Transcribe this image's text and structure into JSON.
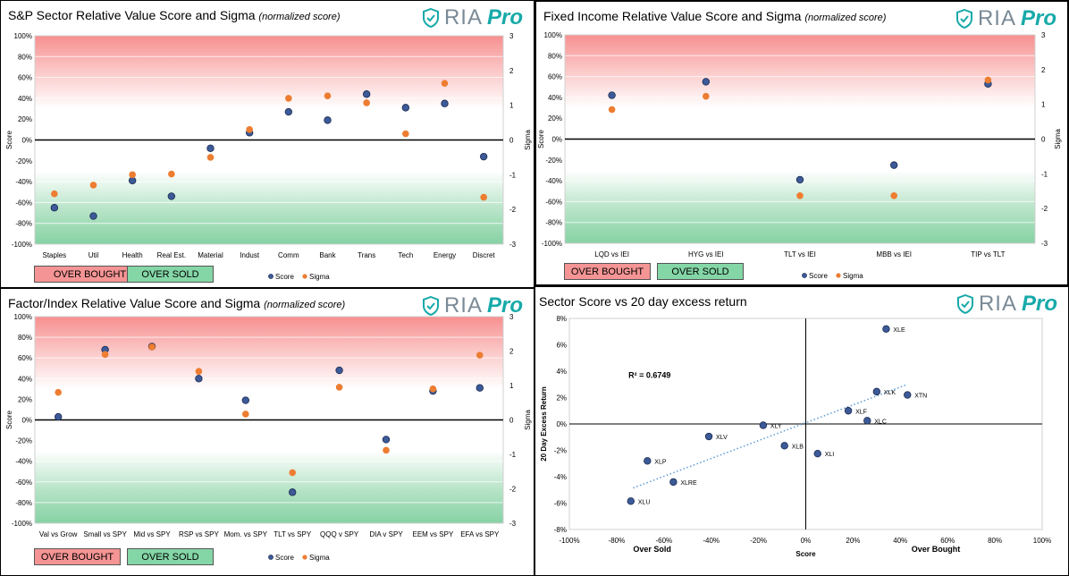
{
  "brand": {
    "ria": "RIA",
    "pro": "Pro",
    "teal": "#18a9a9",
    "gray": "#7a8a96"
  },
  "colors": {
    "score": "#3d5a98",
    "sigma": "#ed7d31",
    "overbought_bg": "#f59494",
    "oversold_bg": "#84d6a6"
  },
  "panels": {
    "sp": {
      "title": "S&P Sector Relative Value Score and Sigma",
      "subtitle": "(normalized score)",
      "overbought_label": "OVER BOUGHT",
      "oversold_label": "OVER SOLD"
    },
    "fi": {
      "title": "Fixed Income Relative Value Score and Sigma",
      "subtitle": "(normalized score)",
      "overbought_label": "OVER BOUGHT",
      "oversold_label": "OVER SOLD"
    },
    "fx": {
      "title": "Factor/Index Relative Value Score and Sigma",
      "subtitle": "(normalized score)",
      "overbought_label": "OVER BOUGHT",
      "oversold_label": "OVER SOLD"
    },
    "sc": {
      "title": "Sector Score vs 20 day excess return"
    }
  },
  "chart_data": [
    {
      "id": "sp",
      "type": "scatter",
      "title": "S&P Sector Relative Value Score and Sigma",
      "categories": [
        "Staples",
        "Util",
        "Health",
        "Real Est.",
        "Material",
        "Indust",
        "Comm",
        "Bank",
        "Trans",
        "Tech",
        "Energy",
        "Discret"
      ],
      "series": [
        {
          "name": "Score",
          "values": [
            -65,
            -73,
            -39,
            -54,
            -8,
            7,
            27,
            19,
            44,
            31,
            35,
            -16
          ]
        },
        {
          "name": "Sigma",
          "values": [
            -1.55,
            -1.3,
            -1.0,
            -0.98,
            -0.5,
            0.3,
            1.2,
            1.27,
            1.07,
            0.18,
            1.63,
            -1.65
          ]
        }
      ],
      "ylabel": "Score",
      "y2label": "Sigma",
      "ylim": [
        -100,
        100
      ],
      "y2lim": [
        -3,
        3
      ],
      "yticks": [
        "100%",
        "80%",
        "60%",
        "40%",
        "20%",
        "0%",
        "-20%",
        "-40%",
        "-60%",
        "-80%",
        "-100%"
      ],
      "y2ticks": [
        "3",
        "2",
        "1",
        "0",
        "-1",
        "-2",
        "-3"
      ],
      "legend": [
        "Score",
        "Sigma"
      ]
    },
    {
      "id": "fi",
      "type": "scatter",
      "title": "Fixed Income Relative Value Score and Sigma",
      "categories": [
        "LQD vs IEI",
        "HYG vs IEI",
        "TLT vs IEI",
        "MBB vs IEI",
        "TIP vs TLT"
      ],
      "series": [
        {
          "name": "Score",
          "values": [
            42,
            55,
            -39,
            -25,
            53
          ]
        },
        {
          "name": "Sigma",
          "values": [
            0.85,
            1.23,
            -1.63,
            -1.63,
            1.7
          ]
        }
      ],
      "ylabel": "Score",
      "y2label": "Sigma",
      "ylim": [
        -100,
        100
      ],
      "y2lim": [
        -3,
        3
      ],
      "yticks": [
        "100%",
        "80%",
        "60%",
        "40%",
        "20%",
        "0%",
        "-20%",
        "-40%",
        "-60%",
        "-80%",
        "-100%"
      ],
      "y2ticks": [
        "3",
        "2",
        "1",
        "0",
        "-1",
        "-2",
        "-3"
      ],
      "legend": [
        "Score",
        "Sigma"
      ]
    },
    {
      "id": "fx",
      "type": "scatter",
      "title": "Factor/Index Relative Value Score and Sigma",
      "categories": [
        "Val vs Grow",
        "Small vs SPY",
        "Mid vs SPY",
        "RSP vs SPY",
        "Mom. vs SPY",
        "TLT vs SPY",
        "QQQ v SPY",
        "DIA v SPY",
        "EEM vs SPY",
        "EFA vs SPY"
      ],
      "series": [
        {
          "name": "Score",
          "values": [
            3,
            68,
            71,
            40,
            19,
            -70,
            48,
            -19,
            28,
            31
          ]
        },
        {
          "name": "Sigma",
          "values": [
            0.8,
            1.9,
            2.12,
            1.41,
            0.17,
            -1.53,
            0.95,
            -0.88,
            0.9,
            1.88
          ]
        }
      ],
      "ylabel": "Score",
      "y2label": "Sigma",
      "ylim": [
        -100,
        100
      ],
      "y2lim": [
        -3,
        3
      ],
      "yticks": [
        "100%",
        "80%",
        "60%",
        "40%",
        "20%",
        "0%",
        "-20%",
        "-40%",
        "-60%",
        "-80%",
        "-100%"
      ],
      "y2ticks": [
        "3",
        "2",
        "1",
        "0",
        "-1",
        "-2",
        "-3"
      ],
      "legend": [
        "Score",
        "Sigma"
      ]
    },
    {
      "id": "sc",
      "type": "scatter",
      "title": "Sector Score vs 20 day excess return",
      "points": [
        {
          "label": "XLE",
          "x": 34,
          "y": 7.2
        },
        {
          "label": "XLK",
          "x": 30,
          "y": 2.45
        },
        {
          "label": "XTN",
          "x": 43,
          "y": 2.2
        },
        {
          "label": "XLF",
          "x": 18,
          "y": 1.0
        },
        {
          "label": "XLC",
          "x": 26,
          "y": 0.25
        },
        {
          "label": "XLY",
          "x": -18,
          "y": -0.1
        },
        {
          "label": "XLV",
          "x": -41,
          "y": -0.95
        },
        {
          "label": "XLB",
          "x": -9,
          "y": -1.65
        },
        {
          "label": "XLI",
          "x": 5,
          "y": -2.25
        },
        {
          "label": "XLP",
          "x": -67,
          "y": -2.8
        },
        {
          "label": "XLRE",
          "x": -56,
          "y": -4.4
        },
        {
          "label": "XLU",
          "x": -74,
          "y": -5.85
        }
      ],
      "trendline": {
        "from": [
          -73,
          -4.85
        ],
        "to": [
          43,
          3.0
        ]
      },
      "r2_label": "R² = 0.6749",
      "xlabel": "Score",
      "ylabel": "20 Day Excess Return",
      "xlim": [
        -100,
        100
      ],
      "ylim": [
        -8,
        8
      ],
      "xticks": [
        "-100%",
        "-80%",
        "-60%",
        "-40%",
        "-20%",
        "0%",
        "20%",
        "40%",
        "60%",
        "80%",
        "100%"
      ],
      "yticks": [
        "8%",
        "6%",
        "4%",
        "2%",
        "0%",
        "-2%",
        "-4%",
        "-6%",
        "-8%"
      ],
      "left_note": "Over Sold",
      "right_note": "Over Bought"
    }
  ]
}
